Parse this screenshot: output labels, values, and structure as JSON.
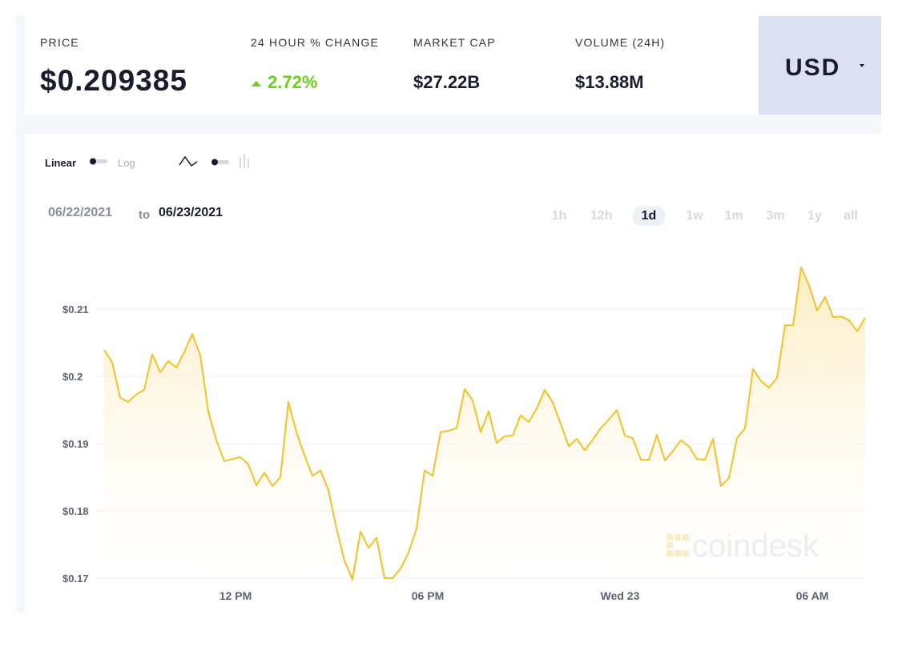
{
  "header": {
    "price_label": "PRICE",
    "price": "$0.209385",
    "change_label": "24 HOUR % CHANGE",
    "change": "2.72%",
    "market_cap_label": "MARKET CAP",
    "market_cap": "$27.22B",
    "volume_label": "VOLUME (24H)",
    "volume": "$13.88M",
    "currency": "USD"
  },
  "controls": {
    "linear": "Linear",
    "log": "Log"
  },
  "date_range": {
    "from": "06/22/2021",
    "to_word": "to",
    "to": "06/23/2021"
  },
  "ranges": [
    "1h",
    "12h",
    "1d",
    "1w",
    "1m",
    "3m",
    "1y",
    "all"
  ],
  "watermark": "coindesk",
  "chart_data": {
    "type": "line",
    "x": [
      7.9,
      8.15,
      8.4,
      8.65,
      8.9,
      9.15,
      9.4,
      9.65,
      9.9,
      10.15,
      10.4,
      10.65,
      10.9,
      11.15,
      11.4,
      11.65,
      11.9,
      12.15,
      12.4,
      12.65,
      12.9,
      13.15,
      13.4,
      13.65,
      13.9,
      14.15,
      14.4,
      14.65,
      14.9,
      15.15,
      15.4,
      15.65,
      15.9,
      16.15,
      16.4,
      16.65,
      16.9,
      17.15,
      17.4,
      17.65,
      17.9,
      18.15,
      18.4,
      18.65,
      18.9,
      19.15,
      19.4,
      19.65,
      19.9,
      20.15,
      20.4,
      20.65,
      20.9,
      21.15,
      21.4,
      21.65,
      21.9,
      22.15,
      22.4,
      22.65,
      22.9,
      23.15,
      23.4,
      23.65,
      23.9,
      24.15,
      24.4,
      24.65,
      24.9,
      25.15,
      25.4,
      25.65,
      25.9,
      26.15,
      26.4,
      26.65,
      26.9,
      27.15,
      27.4,
      27.65,
      27.9,
      28.15,
      28.4,
      28.65,
      28.9,
      29.15,
      29.4,
      29.65,
      29.9,
      30.15,
      30.4,
      30.65,
      30.9,
      31.15,
      31.4,
      31.65
    ],
    "series": [
      {
        "name": "Price",
        "color": "#f6c223",
        "values": [
          0.2039,
          0.2021,
          0.1968,
          0.1962,
          0.1973,
          0.198,
          0.2033,
          0.2006,
          0.2023,
          0.2013,
          0.2036,
          0.2063,
          0.2031,
          0.1948,
          0.1905,
          0.1874,
          0.1877,
          0.188,
          0.1869,
          0.1838,
          0.1857,
          0.1837,
          0.185,
          0.1962,
          0.1917,
          0.1883,
          0.1852,
          0.186,
          0.1831,
          0.1774,
          0.1726,
          0.1698,
          0.1769,
          0.1745,
          0.176,
          0.17,
          0.17,
          0.1714,
          0.1738,
          0.1774,
          0.186,
          0.1852,
          0.1917,
          0.1919,
          0.1923,
          0.1981,
          0.1964,
          0.1917,
          0.1948,
          0.1901,
          0.1911,
          0.1912,
          0.1942,
          0.1932,
          0.1952,
          0.198,
          0.1961,
          0.1929,
          0.1896,
          0.1907,
          0.189,
          0.1906,
          0.1923,
          0.1936,
          0.195,
          0.1912,
          0.1908,
          0.1876,
          0.1876,
          0.1913,
          0.1875,
          0.1889,
          0.1905,
          0.1896,
          0.1877,
          0.1876,
          0.1907,
          0.1837,
          0.1849,
          0.1908,
          0.1923,
          0.2011,
          0.1993,
          0.1983,
          0.1998,
          0.2076,
          0.2076,
          0.2162,
          0.2135,
          0.2098,
          0.2118,
          0.2088,
          0.2089,
          0.2083,
          0.2067,
          0.2087
        ]
      }
    ],
    "xlim": [
      7.9,
      31.65
    ],
    "xticks": [
      {
        "value": 12,
        "label": "12 PM"
      },
      {
        "value": 18,
        "label": "06 PM"
      },
      {
        "value": 24,
        "label": "Wed 23"
      },
      {
        "value": 30,
        "label": "06 AM"
      }
    ],
    "ylim": [
      0.17,
      0.22
    ],
    "yticks": [
      {
        "value": 0.17,
        "label": "$0.17"
      },
      {
        "value": 0.18,
        "label": "$0.18"
      },
      {
        "value": 0.19,
        "label": "$0.19"
      },
      {
        "value": 0.2,
        "label": "$0.2"
      },
      {
        "value": 0.21,
        "label": "$0.21"
      }
    ],
    "grid": true
  }
}
